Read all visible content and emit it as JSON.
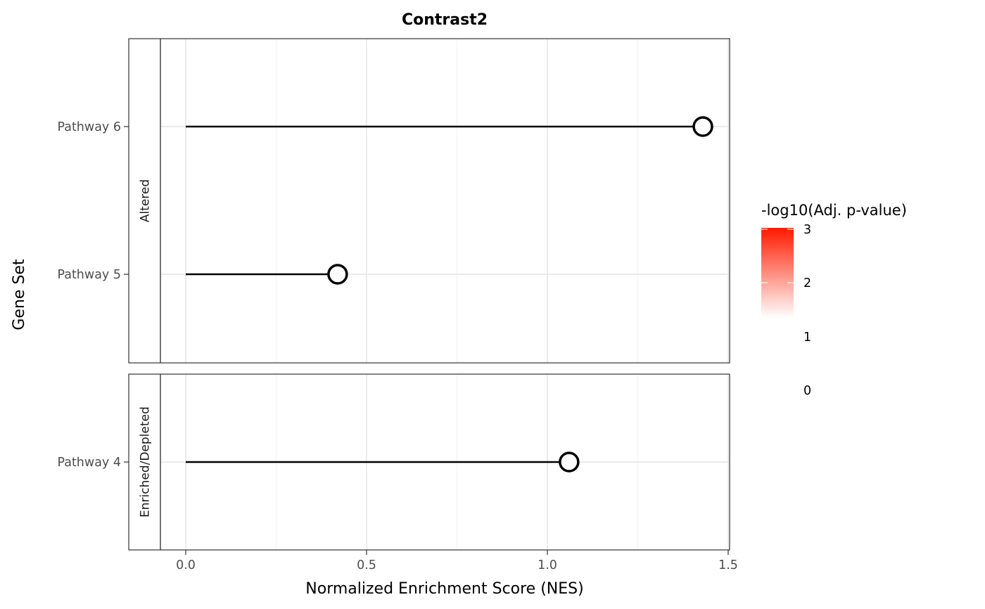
{
  "chart_data": {
    "type": "lollipop",
    "title": "Contrast2",
    "xlabel": "Normalized Enrichment Score (NES)",
    "ylabel": "Gene Set",
    "xlim": [
      -0.16,
      1.5
    ],
    "x_ticks": [
      "0.0",
      "0.5",
      "1.0",
      "1.5"
    ],
    "grid": true,
    "facets": [
      {
        "label": "Altered",
        "categories": [
          "Pathway 6",
          "Pathway 5"
        ],
        "points": [
          {
            "category": "Pathway 6",
            "nes": 1.43
          },
          {
            "category": "Pathway 5",
            "nes": 0.42
          }
        ]
      },
      {
        "label": "Enriched/Depleted",
        "categories": [
          "Pathway 4"
        ],
        "points": [
          {
            "category": "Pathway 4",
            "nes": 1.06
          }
        ]
      }
    ],
    "legend": {
      "title": "-log10(Adj. p-value)",
      "position": "right",
      "labels": [
        "3",
        "2",
        "1",
        "0"
      ],
      "range": [
        0,
        3
      ],
      "colors": [
        "#ffffff",
        "#ff0000"
      ]
    }
  }
}
